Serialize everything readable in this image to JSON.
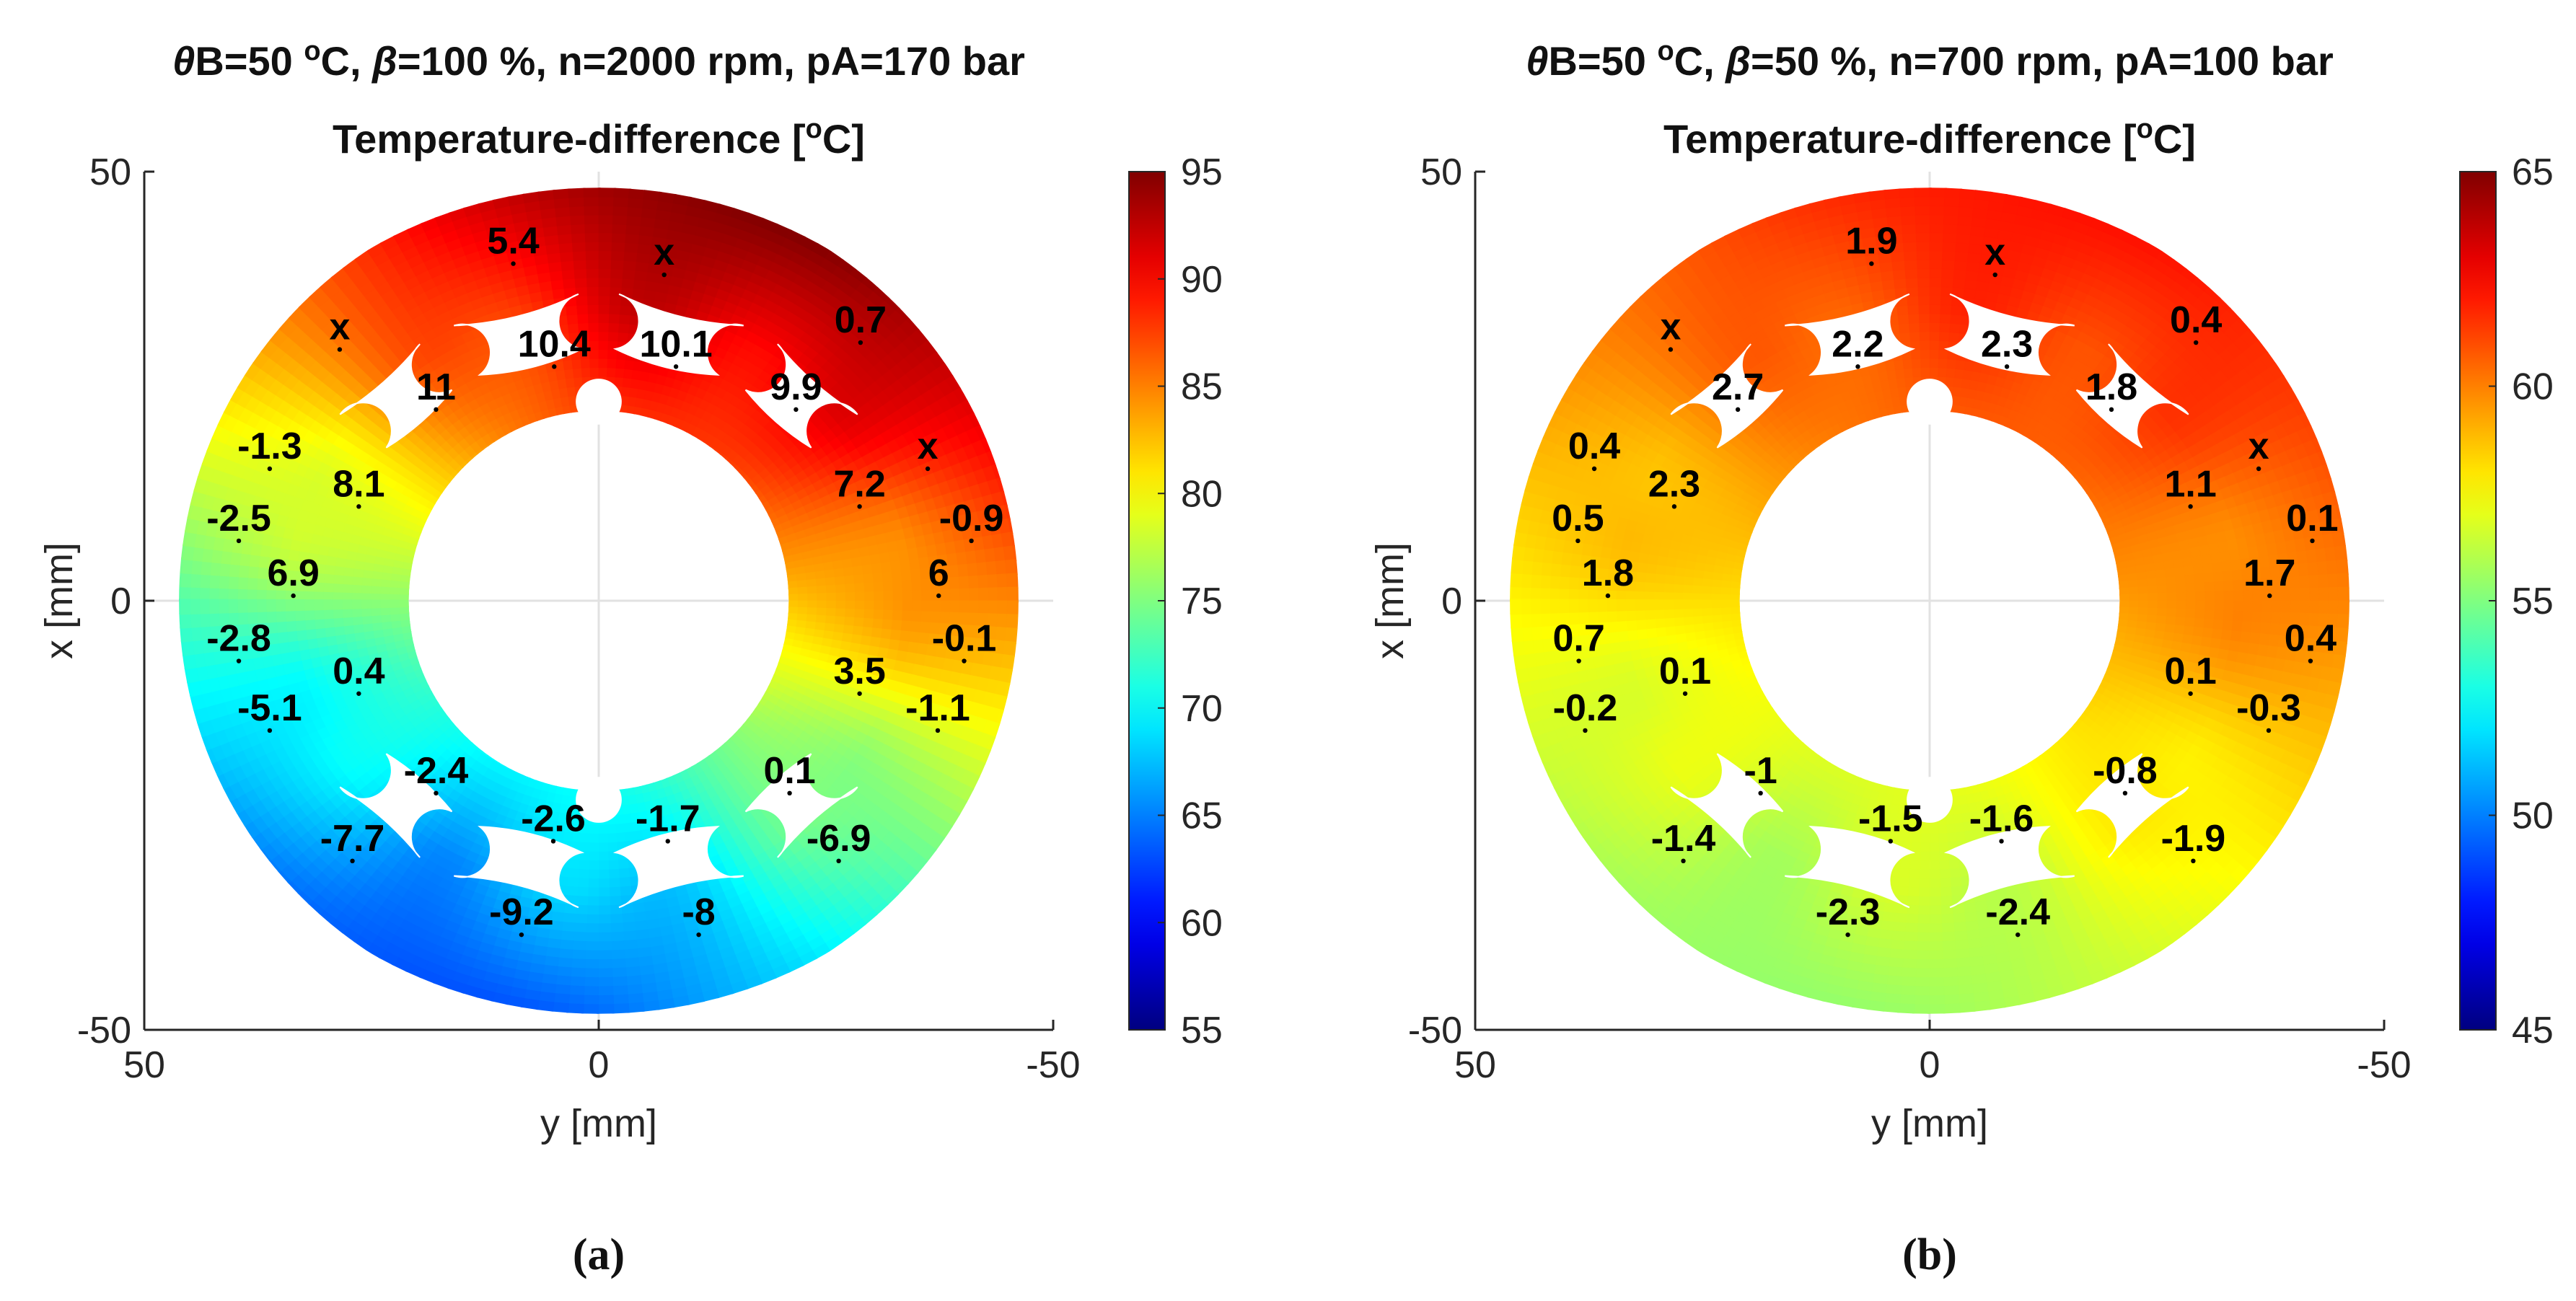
{
  "figure": {
    "captions": [
      "(a)",
      "(b)"
    ]
  },
  "chart_data": [
    {
      "type": "heatmap",
      "panel": "a",
      "title_parts": [
        {
          "text": "θ",
          "style": "italic"
        },
        {
          "text": "B=50 "
        },
        {
          "text": "o",
          "style": "sup"
        },
        {
          "text": "C, "
        },
        {
          "text": "β",
          "style": "italic"
        },
        {
          "text": "=100 %, n=2000 rpm, pA=170 bar"
        }
      ],
      "subtitle_parts": [
        {
          "text": "Temperature-difference ["
        },
        {
          "text": "o",
          "style": "sup"
        },
        {
          "text": "C]"
        }
      ],
      "xlabel": "y [mm]",
      "ylabel": "x [mm]",
      "xlim": [
        50,
        -50
      ],
      "ylim": [
        -50,
        50
      ],
      "x_ticks": [
        "50",
        "0",
        "-50"
      ],
      "y_ticks": [
        "50",
        "0",
        "-50"
      ],
      "grid": true,
      "colorbar": {
        "min": 55,
        "max": 95,
        "ticks": [
          "95",
          "90",
          "85",
          "80",
          "75",
          "70",
          "65",
          "60",
          "55"
        ],
        "colormap": "jet"
      },
      "field": {
        "base_value": 79,
        "amplitude": 15,
        "hot_angle_deg": 112,
        "coarse_amplitude": 1.5
      },
      "sensors": [
        {
          "label": "5.4",
          "y": 9.4,
          "x": 41.8
        },
        {
          "label": "x",
          "y": -7.2,
          "x": 40.5
        },
        {
          "label": "x",
          "y": 28.5,
          "x": 31.8
        },
        {
          "label": "10.4",
          "y": 4.9,
          "x": 29.8
        },
        {
          "label": "10.1",
          "y": -8.5,
          "x": 29.8
        },
        {
          "label": "0.7",
          "y": -28.8,
          "x": 32.6
        },
        {
          "label": "11",
          "y": 17.9,
          "x": 24.8
        },
        {
          "label": "9.9",
          "y": -21.7,
          "x": 24.8
        },
        {
          "label": "x",
          "y": -36.2,
          "x": 17.9
        },
        {
          "label": "-1.3",
          "y": 36.2,
          "x": 17.9
        },
        {
          "label": "8.1",
          "y": 26.4,
          "x": 13.5
        },
        {
          "label": "7.2",
          "y": -28.7,
          "x": 13.5
        },
        {
          "label": "-2.5",
          "y": 39.6,
          "x": 9.5
        },
        {
          "label": "-0.9",
          "y": -41.0,
          "x": 9.5
        },
        {
          "label": "6.9",
          "y": 33.6,
          "x": 3.1
        },
        {
          "label": "6",
          "y": -37.4,
          "x": 3.1
        },
        {
          "label": "-2.8",
          "y": 39.6,
          "x": -4.5
        },
        {
          "label": "-0.1",
          "y": -40.2,
          "x": -4.5
        },
        {
          "label": "0.4",
          "y": 26.4,
          "x": -8.3
        },
        {
          "label": "3.5",
          "y": -28.7,
          "x": -8.3
        },
        {
          "label": "-5.1",
          "y": 36.2,
          "x": -12.6
        },
        {
          "label": "-1.1",
          "y": -37.3,
          "x": -12.6
        },
        {
          "label": "-2.4",
          "y": 17.9,
          "x": -19.9
        },
        {
          "label": "0.1",
          "y": -21.0,
          "x": -19.9
        },
        {
          "label": "-2.6",
          "y": 5.0,
          "x": -25.5
        },
        {
          "label": "-1.7",
          "y": -7.6,
          "x": -25.5
        },
        {
          "label": "-7.7",
          "y": 27.1,
          "x": -27.8
        },
        {
          "label": "-6.9",
          "y": -26.4,
          "x": -27.8
        },
        {
          "label": "-9.2",
          "y": 8.5,
          "x": -36.4
        },
        {
          "label": "-8",
          "y": -11.0,
          "x": -36.4
        }
      ]
    },
    {
      "type": "heatmap",
      "panel": "b",
      "title_parts": [
        {
          "text": "θ",
          "style": "italic"
        },
        {
          "text": "B=50 "
        },
        {
          "text": "o",
          "style": "sup"
        },
        {
          "text": "C, "
        },
        {
          "text": "β",
          "style": "italic"
        },
        {
          "text": "=50 %, n=700 rpm, pA=100 bar"
        }
      ],
      "subtitle_parts": [
        {
          "text": "Temperature-difference ["
        },
        {
          "text": "o",
          "style": "sup"
        },
        {
          "text": "C]"
        }
      ],
      "xlabel": "y [mm]",
      "ylabel": "x [mm]",
      "xlim": [
        50,
        -50
      ],
      "ylim": [
        -50,
        50
      ],
      "x_ticks": [
        "50",
        "0",
        "-50"
      ],
      "y_ticks": [
        "50",
        "0",
        "-50"
      ],
      "grid": true,
      "colorbar": {
        "min": 45,
        "max": 65,
        "ticks": [
          "65",
          "60",
          "55",
          "50",
          "45"
        ],
        "colormap": "jet"
      },
      "field": {
        "base_value": 58.8,
        "amplitude": 3.2,
        "hot_angle_deg": 110,
        "coarse_amplitude": 0.5
      },
      "sensors": [
        {
          "label": "1.9",
          "y": 6.4,
          "x": 41.8
        },
        {
          "label": "x",
          "y": -7.2,
          "x": 40.5
        },
        {
          "label": "x",
          "y": 28.5,
          "x": 31.8
        },
        {
          "label": "2.2",
          "y": 7.9,
          "x": 29.8
        },
        {
          "label": "2.3",
          "y": -8.5,
          "x": 29.8
        },
        {
          "label": "0.4",
          "y": -29.3,
          "x": 32.6
        },
        {
          "label": "2.7",
          "y": 21.1,
          "x": 24.8
        },
        {
          "label": "1.8",
          "y": -20.0,
          "x": 24.8
        },
        {
          "label": "x",
          "y": -36.2,
          "x": 17.9
        },
        {
          "label": "0.4",
          "y": 36.9,
          "x": 17.9
        },
        {
          "label": "2.3",
          "y": 28.1,
          "x": 13.5
        },
        {
          "label": "1.1",
          "y": -28.7,
          "x": 13.5
        },
        {
          "label": "0.5",
          "y": 38.7,
          "x": 9.5
        },
        {
          "label": "0.1",
          "y": -42.1,
          "x": 9.5
        },
        {
          "label": "1.8",
          "y": 35.4,
          "x": 3.1
        },
        {
          "label": "1.7",
          "y": -37.4,
          "x": 3.1
        },
        {
          "label": "0.7",
          "y": 38.6,
          "x": -4.5
        },
        {
          "label": "0.4",
          "y": -41.9,
          "x": -4.5
        },
        {
          "label": "0.1",
          "y": 26.9,
          "x": -8.3
        },
        {
          "label": "0.1",
          "y": -28.7,
          "x": -8.3
        },
        {
          "label": "-0.2",
          "y": 37.9,
          "x": -12.6
        },
        {
          "label": "-0.3",
          "y": -37.3,
          "x": -12.6
        },
        {
          "label": "-1",
          "y": 18.6,
          "x": -19.9
        },
        {
          "label": "-0.8",
          "y": -21.5,
          "x": -19.9
        },
        {
          "label": "-1.5",
          "y": 4.3,
          "x": -25.5
        },
        {
          "label": "-1.6",
          "y": -7.9,
          "x": -25.5
        },
        {
          "label": "-1.4",
          "y": 27.1,
          "x": -27.8
        },
        {
          "label": "-1.9",
          "y": -29.0,
          "x": -27.8
        },
        {
          "label": "-2.3",
          "y": 9.0,
          "x": -36.4
        },
        {
          "label": "-2.4",
          "y": -9.7,
          "x": -36.4
        }
      ]
    }
  ]
}
